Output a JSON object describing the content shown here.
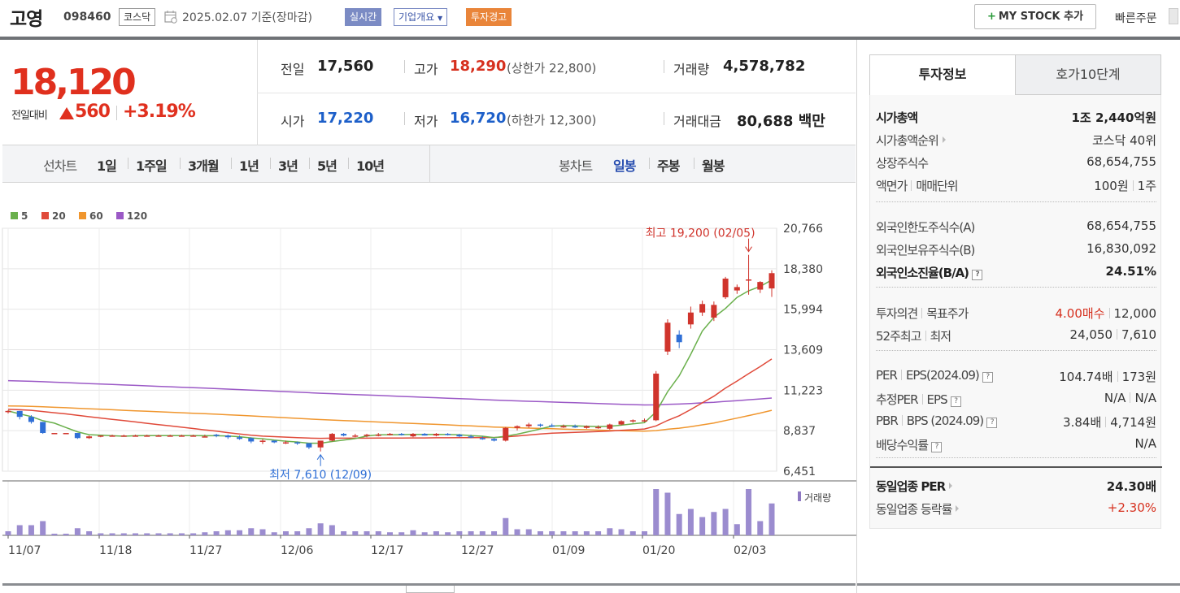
{
  "header": {
    "stock_name": "고영",
    "stock_code": "098460",
    "market": "코스닥",
    "date_text": "2025.02.07  기준(장마감)",
    "realtime_label": "실시간",
    "company_label": "기업개요",
    "warning_label": "투자경고",
    "mystock_label": "MY STOCK 추가",
    "quick_order_label": "빠른주문"
  },
  "quote": {
    "current_price": "18,120",
    "change_label": "전일대비",
    "change_amount": "560",
    "change_pct": "+3.19%",
    "prev_close_label": "전일",
    "prev_close": "17,560",
    "high_label": "고가",
    "high": "18,290",
    "upper_limit": "(상한가 22,800)",
    "volume_label": "거래량",
    "volume": "4,578,782",
    "open_label": "시가",
    "open": "17,220",
    "low_label": "저가",
    "low": "16,720",
    "lower_limit": "(하한가 12,300)",
    "amount_label": "거래대금",
    "amount": "80,688",
    "amount_unit": "백만"
  },
  "chart_tabs": {
    "line_label": "선차트",
    "periods": [
      "1일",
      "1주일",
      "3개월",
      "1년",
      "3년",
      "5년",
      "10년"
    ],
    "candle_label": "봉차트",
    "candle_periods": [
      "일봉",
      "주봉",
      "월봉"
    ]
  },
  "chart_data": {
    "type": "candlestick",
    "legend": [
      {
        "name": "5",
        "color": "#6ab04c"
      },
      {
        "name": "20",
        "color": "#e04a3a"
      },
      {
        "name": "60",
        "color": "#f0962e"
      },
      {
        "name": "120",
        "color": "#9b59c6"
      }
    ],
    "y_ticks": [
      "20,766",
      "18,380",
      "15,994",
      "13,609",
      "11,223",
      "8,837",
      "6,451"
    ],
    "ylim": [
      6451,
      20766
    ],
    "x_ticks": [
      "11/07",
      "11/18",
      "11/27",
      "12/06",
      "12/17",
      "12/27",
      "01/09",
      "01/20",
      "02/03"
    ],
    "high_annotation": "최고 19,200 (02/05)",
    "low_annotation": "최저 7,610 (12/09)",
    "volume_label": "거래량",
    "candles": [
      [
        9950,
        10050,
        9850,
        10000
      ],
      [
        10000,
        10000,
        9500,
        9650
      ],
      [
        9650,
        9750,
        9250,
        9350
      ],
      [
        9350,
        9350,
        8650,
        8700
      ],
      [
        8700,
        8700,
        8650,
        8700
      ],
      [
        8700,
        8700,
        8650,
        8700
      ],
      [
        8700,
        8700,
        8350,
        8400
      ],
      [
        8400,
        8550,
        8350,
        8500
      ],
      [
        8500,
        8550,
        8450,
        8550
      ],
      [
        8550,
        8600,
        8500,
        8550
      ],
      [
        8550,
        8600,
        8500,
        8550
      ],
      [
        8550,
        8600,
        8500,
        8550
      ],
      [
        8550,
        8600,
        8500,
        8550
      ],
      [
        8550,
        8600,
        8500,
        8550
      ],
      [
        8550,
        8600,
        8500,
        8550
      ],
      [
        8550,
        8600,
        8500,
        8550
      ],
      [
        8550,
        8600,
        8500,
        8550
      ],
      [
        8500,
        8600,
        8450,
        8500
      ],
      [
        8600,
        8650,
        8450,
        8550
      ],
      [
        8550,
        8600,
        8350,
        8450
      ],
      [
        8450,
        8550,
        8300,
        8350
      ],
      [
        8400,
        8450,
        8100,
        8200
      ],
      [
        8200,
        8350,
        8050,
        8250
      ],
      [
        8250,
        8250,
        8100,
        8150
      ],
      [
        8150,
        8250,
        8050,
        8150
      ],
      [
        8150,
        8200,
        8000,
        8100
      ],
      [
        8100,
        8100,
        7750,
        7850
      ],
      [
        7850,
        8200,
        7610,
        8250
      ],
      [
        8250,
        8700,
        8200,
        8650
      ],
      [
        8650,
        8700,
        8500,
        8550
      ],
      [
        8550,
        8650,
        8450,
        8550
      ],
      [
        8550,
        8650,
        8450,
        8600
      ],
      [
        8600,
        8700,
        8500,
        8600
      ],
      [
        8600,
        8700,
        8550,
        8650
      ],
      [
        8650,
        8700,
        8550,
        8600
      ],
      [
        8500,
        8700,
        8450,
        8650
      ],
      [
        8650,
        8700,
        8550,
        8550
      ],
      [
        8550,
        8700,
        8500,
        8650
      ],
      [
        8650,
        8700,
        8550,
        8600
      ],
      [
        8600,
        8650,
        8450,
        8500
      ],
      [
        8500,
        8600,
        8400,
        8450
      ],
      [
        8400,
        8500,
        8300,
        8350
      ],
      [
        8350,
        8400,
        8200,
        8250
      ],
      [
        8250,
        9050,
        8200,
        9000
      ],
      [
        9000,
        9150,
        8850,
        9100
      ],
      [
        9100,
        9300,
        9000,
        9200
      ],
      [
        9200,
        9250,
        9050,
        9150
      ],
      [
        9150,
        9250,
        9050,
        9100
      ],
      [
        9100,
        9200,
        9000,
        9100
      ],
      [
        9100,
        9200,
        9000,
        9050
      ],
      [
        9000,
        9150,
        8950,
        9100
      ],
      [
        9050,
        9150,
        8950,
        9050
      ],
      [
        8950,
        9250,
        8900,
        9200
      ],
      [
        9200,
        9450,
        9150,
        9400
      ],
      [
        9400,
        9500,
        9300,
        9450
      ],
      [
        9450,
        9550,
        9350,
        9450
      ],
      [
        9450,
        12350,
        9400,
        12200
      ],
      [
        13500,
        15400,
        13300,
        15200
      ],
      [
        14500,
        14750,
        13700,
        14050
      ],
      [
        15100,
        16150,
        14850,
        15800
      ],
      [
        15800,
        16500,
        15600,
        16300
      ],
      [
        15500,
        16450,
        15300,
        16250
      ],
      [
        16700,
        17900,
        16600,
        17800
      ],
      [
        17100,
        17450,
        16900,
        17300
      ],
      [
        17700,
        19200,
        16850,
        17750
      ],
      [
        17150,
        17650,
        16950,
        17600
      ],
      [
        17220,
        18290,
        16720,
        18120
      ]
    ]
  },
  "right_panel": {
    "tab_invest": "투자정보",
    "tab_hoga": "호가10단계",
    "rows1": [
      {
        "k": "시가총액",
        "v": "1조 2,440억원"
      },
      {
        "k": "시가총액순위",
        "v": "코스닥 40위"
      },
      {
        "k": "상장주식수",
        "v": "68,654,755"
      },
      {
        "k": "액면가",
        "k2": "매매단위",
        "v": "100원",
        "v2": "1주"
      }
    ],
    "rows2": [
      {
        "k": "외국인한도주식수(A)",
        "v": "68,654,755"
      },
      {
        "k": "외국인보유주식수(B)",
        "v": "16,830,092"
      },
      {
        "k": "외국인소진율(B/A)",
        "v": "24.51%"
      }
    ],
    "rows3": [
      {
        "k": "투자의견",
        "k2": "목표주가",
        "v": "4.00매수",
        "v2": "12,000"
      },
      {
        "k": "52주최고",
        "k2": "최저",
        "v": "24,050",
        "v2": "7,610"
      }
    ],
    "rows4": [
      {
        "k": "PER",
        "k2": "EPS(2024.09)",
        "v": "104.74배",
        "v2": "173원"
      },
      {
        "k": "추정PER",
        "k2": "EPS",
        "v": "N/A",
        "v2": "N/A"
      },
      {
        "k": "PBR",
        "k2": "BPS (2024.09)",
        "v": "3.84배",
        "v2": "4,714원"
      },
      {
        "k": "배당수익률",
        "v": "N/A"
      }
    ],
    "rows5": [
      {
        "k": "동일업종 PER",
        "v": "24.30배"
      },
      {
        "k": "동일업종 등락률",
        "v": "+2.30%"
      }
    ]
  }
}
